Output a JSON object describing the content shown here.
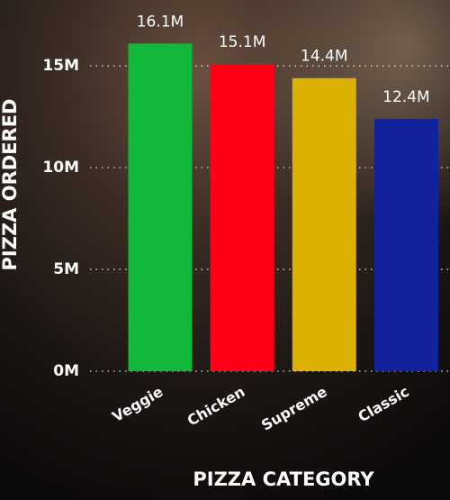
{
  "chart_data": {
    "type": "bar",
    "categories": [
      "Veggie",
      "Chicken",
      "Supreme",
      "Classic"
    ],
    "values": [
      16.1,
      15.1,
      14.4,
      12.4
    ],
    "value_labels": [
      "16.1M",
      "15.1M",
      "14.4M",
      "12.4M"
    ],
    "colors": [
      "#12b83a",
      "#ff0016",
      "#dcb000",
      "#12229c"
    ],
    "x_label": "PIZZA CATEGORY",
    "y_label": "PIZZA ORDERED",
    "ylim": [
      0,
      17
    ],
    "yticks": [
      {
        "value": 0,
        "label": "0M"
      },
      {
        "value": 5,
        "label": "5M"
      },
      {
        "value": 10,
        "label": "10M"
      },
      {
        "value": 15,
        "label": "15M"
      }
    ],
    "grid": true
  }
}
